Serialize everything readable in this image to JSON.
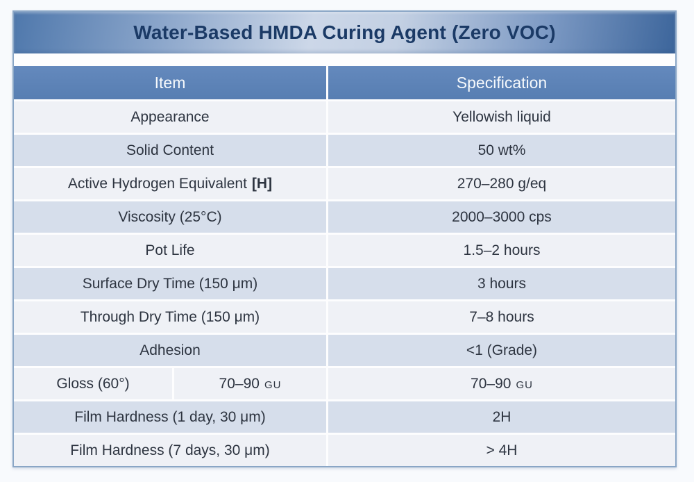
{
  "page": {
    "title_bar": "Water-Based HMDA Curing Agent (Zero VOC)"
  },
  "table": {
    "headers": {
      "item": "Item",
      "specification": "Specification"
    },
    "rows": [
      {
        "item": "Appearance",
        "spec": "Yellowish liquid"
      },
      {
        "item": "Solid Content",
        "spec": "50 wt%"
      },
      {
        "item": "Active Hydrogen Equivalent",
        "item_bold": "[H]",
        "spec": "270–280 g/eq"
      },
      {
        "item": "Viscosity (25°C)",
        "spec": "2000–3000 cps"
      },
      {
        "item": "Pot Life",
        "spec": "1.5–2 hours"
      },
      {
        "item": "Surface Dry Time (150 μm)",
        "spec": "3 hours"
      },
      {
        "item": "Through Dry Time (150 μm)",
        "spec": "7–8 hours"
      },
      {
        "item": "Adhesion",
        "spec": "<1 (Grade)"
      },
      {
        "item": "Gloss (60°)",
        "item_value": "70–90",
        "item_unit": "GU",
        "spec_value": "70–90",
        "spec_unit": "GU"
      },
      {
        "item": "Film Hardness (1 day, 30 μm)",
        "spec": "2H"
      },
      {
        "item": "Film Hardness (7 days, 30 μm)",
        "spec": "> 4H"
      }
    ]
  },
  "colors": {
    "title_text": "#1b3a66",
    "title_bar_edge": "#4f78ac",
    "title_bar_center": "#ccd7e8",
    "header_bg": "#5d84b8",
    "header_text": "#f6f9fc",
    "row_light": "#eff1f6",
    "row_shaded": "#d6deeb",
    "body_text": "#2d3440",
    "table_border": "#8aa6c6"
  }
}
